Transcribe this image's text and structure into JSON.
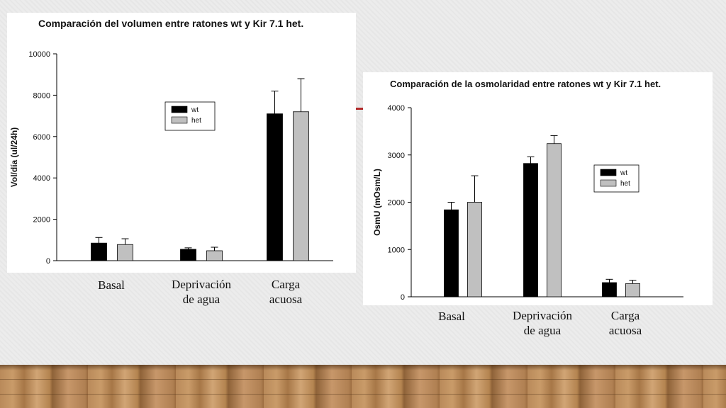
{
  "chart_data": [
    {
      "type": "bar",
      "title": "Comparación del volumen entre ratones wt y Kir 7.1 het.",
      "ylabel": "Vol/día (ul/24h)",
      "ylim": [
        0,
        10000
      ],
      "yticks": [
        "0",
        "2000",
        "4000",
        "6000",
        "8000",
        "10000"
      ],
      "categories": [
        "Basal",
        "Deprivación\nde agua",
        "Carga\nacuosa"
      ],
      "legend": {
        "position": "upper-middle",
        "entries": [
          "wt",
          "het"
        ]
      },
      "series": [
        {
          "name": "wt",
          "color": "#000000",
          "values": [
            850,
            550,
            7100
          ],
          "errors": [
            270,
            70,
            1100
          ]
        },
        {
          "name": "het",
          "color": "#c0c0c0",
          "values": [
            780,
            480,
            7200
          ],
          "errors": [
            280,
            170,
            1600
          ]
        }
      ]
    },
    {
      "type": "bar",
      "title": "Comparación de la osmolaridad entre ratones wt y Kir 7.1 het.",
      "ylabel": "OsmU (mOsm/L)",
      "ylim": [
        0,
        4000
      ],
      "yticks": [
        "0",
        "1000",
        "2000",
        "3000",
        "4000"
      ],
      "categories": [
        "Basal",
        "Deprivación\nde agua",
        "Carga\nacuosa"
      ],
      "legend": {
        "position": "right",
        "entries": [
          "wt",
          "het"
        ]
      },
      "series": [
        {
          "name": "wt",
          "color": "#000000",
          "values": [
            1840,
            2820,
            300
          ],
          "errors": [
            160,
            140,
            70
          ]
        },
        {
          "name": "het",
          "color": "#c0c0c0",
          "values": [
            2000,
            3240,
            280
          ],
          "errors": [
            560,
            170,
            70
          ]
        }
      ]
    }
  ]
}
